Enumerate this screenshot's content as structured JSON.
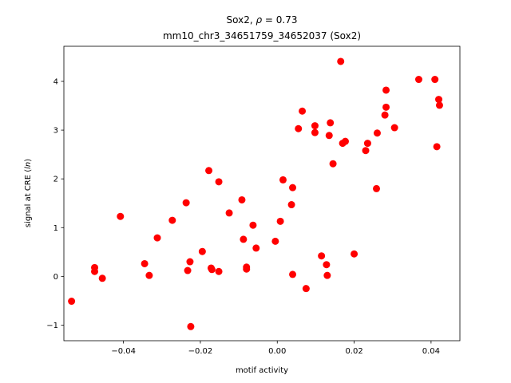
{
  "chart_data": {
    "type": "scatter",
    "title_line1_prefix": "Sox2, ",
    "title_line1_rho": "ρ",
    "title_line1_suffix": " = 0.73",
    "title_line2": "mm10_chr3_34651759_34652037 (Sox2)",
    "xlabel": "motif activity",
    "ylabel_prefix": "signal at CRE (",
    "ylabel_italic": "ln",
    "ylabel_suffix": ")",
    "xlim": [
      -0.0555,
      0.0475
    ],
    "ylim": [
      -1.32,
      4.72
    ],
    "xticks": [
      -0.04,
      -0.02,
      0.0,
      0.02,
      0.04
    ],
    "xtick_labels": [
      "−0.04",
      "−0.02",
      "0.00",
      "0.02",
      "0.04"
    ],
    "yticks": [
      -1,
      0,
      1,
      2,
      3,
      4
    ],
    "ytick_labels": [
      "−1",
      "0",
      "1",
      "2",
      "3",
      "4"
    ],
    "marker_color": "#ff0000",
    "grid": false,
    "points": [
      {
        "x": -0.0535,
        "y": -0.51
      },
      {
        "x": -0.0475,
        "y": 0.18
      },
      {
        "x": -0.0475,
        "y": 0.1
      },
      {
        "x": -0.0455,
        "y": -0.04
      },
      {
        "x": -0.0408,
        "y": 1.23
      },
      {
        "x": -0.0345,
        "y": 0.26
      },
      {
        "x": -0.0333,
        "y": 0.02
      },
      {
        "x": -0.0312,
        "y": 0.79
      },
      {
        "x": -0.0273,
        "y": 1.15
      },
      {
        "x": -0.0237,
        "y": 1.51
      },
      {
        "x": -0.0233,
        "y": 0.12
      },
      {
        "x": -0.0227,
        "y": 0.3
      },
      {
        "x": -0.0225,
        "y": -1.03
      },
      {
        "x": -0.0195,
        "y": 0.51
      },
      {
        "x": -0.0178,
        "y": 2.17
      },
      {
        "x": -0.0172,
        "y": 0.17
      },
      {
        "x": -0.017,
        "y": 0.14
      },
      {
        "x": -0.0152,
        "y": 1.94
      },
      {
        "x": -0.0152,
        "y": 0.1
      },
      {
        "x": -0.0125,
        "y": 1.3
      },
      {
        "x": -0.0092,
        "y": 1.57
      },
      {
        "x": -0.0088,
        "y": 0.76
      },
      {
        "x": -0.008,
        "y": 0.19
      },
      {
        "x": -0.008,
        "y": 0.15
      },
      {
        "x": -0.0063,
        "y": 1.05
      },
      {
        "x": -0.0055,
        "y": 0.58
      },
      {
        "x": -0.0005,
        "y": 0.72
      },
      {
        "x": 0.0008,
        "y": 1.13
      },
      {
        "x": 0.0015,
        "y": 1.98
      },
      {
        "x": 0.0037,
        "y": 1.47
      },
      {
        "x": 0.004,
        "y": 1.82
      },
      {
        "x": 0.004,
        "y": 0.04
      },
      {
        "x": 0.0055,
        "y": 3.03
      },
      {
        "x": 0.0065,
        "y": 3.39
      },
      {
        "x": 0.0075,
        "y": -0.25
      },
      {
        "x": 0.0098,
        "y": 3.09
      },
      {
        "x": 0.0098,
        "y": 2.95
      },
      {
        "x": 0.0115,
        "y": 0.42
      },
      {
        "x": 0.0128,
        "y": 0.24
      },
      {
        "x": 0.013,
        "y": 0.02
      },
      {
        "x": 0.0135,
        "y": 2.89
      },
      {
        "x": 0.0138,
        "y": 3.15
      },
      {
        "x": 0.0145,
        "y": 2.31
      },
      {
        "x": 0.0165,
        "y": 4.41
      },
      {
        "x": 0.017,
        "y": 2.73
      },
      {
        "x": 0.0177,
        "y": 2.77
      },
      {
        "x": 0.02,
        "y": 0.46
      },
      {
        "x": 0.023,
        "y": 2.58
      },
      {
        "x": 0.0235,
        "y": 2.73
      },
      {
        "x": 0.0258,
        "y": 1.8
      },
      {
        "x": 0.026,
        "y": 2.94
      },
      {
        "x": 0.028,
        "y": 3.31
      },
      {
        "x": 0.0283,
        "y": 3.82
      },
      {
        "x": 0.0283,
        "y": 3.47
      },
      {
        "x": 0.0305,
        "y": 3.05
      },
      {
        "x": 0.0368,
        "y": 4.04
      },
      {
        "x": 0.041,
        "y": 4.04
      },
      {
        "x": 0.0415,
        "y": 2.66
      },
      {
        "x": 0.042,
        "y": 3.63
      },
      {
        "x": 0.0422,
        "y": 3.51
      }
    ]
  }
}
